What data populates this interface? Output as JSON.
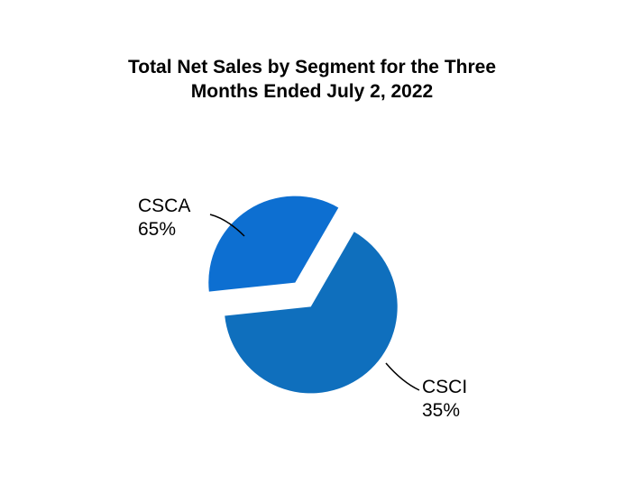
{
  "chart_data": {
    "type": "pie",
    "title_lines": [
      "Total Net Sales by Segment for the Three",
      "Months Ended July 2, 2022"
    ],
    "slices": [
      {
        "name": "CSCA",
        "value": 65,
        "value_label": "65%",
        "color": "#0f6fbd"
      },
      {
        "name": "CSCI",
        "value": 35,
        "value_label": "35%",
        "color": "#0d6fd1"
      }
    ],
    "exploded": true,
    "legend": "none"
  }
}
